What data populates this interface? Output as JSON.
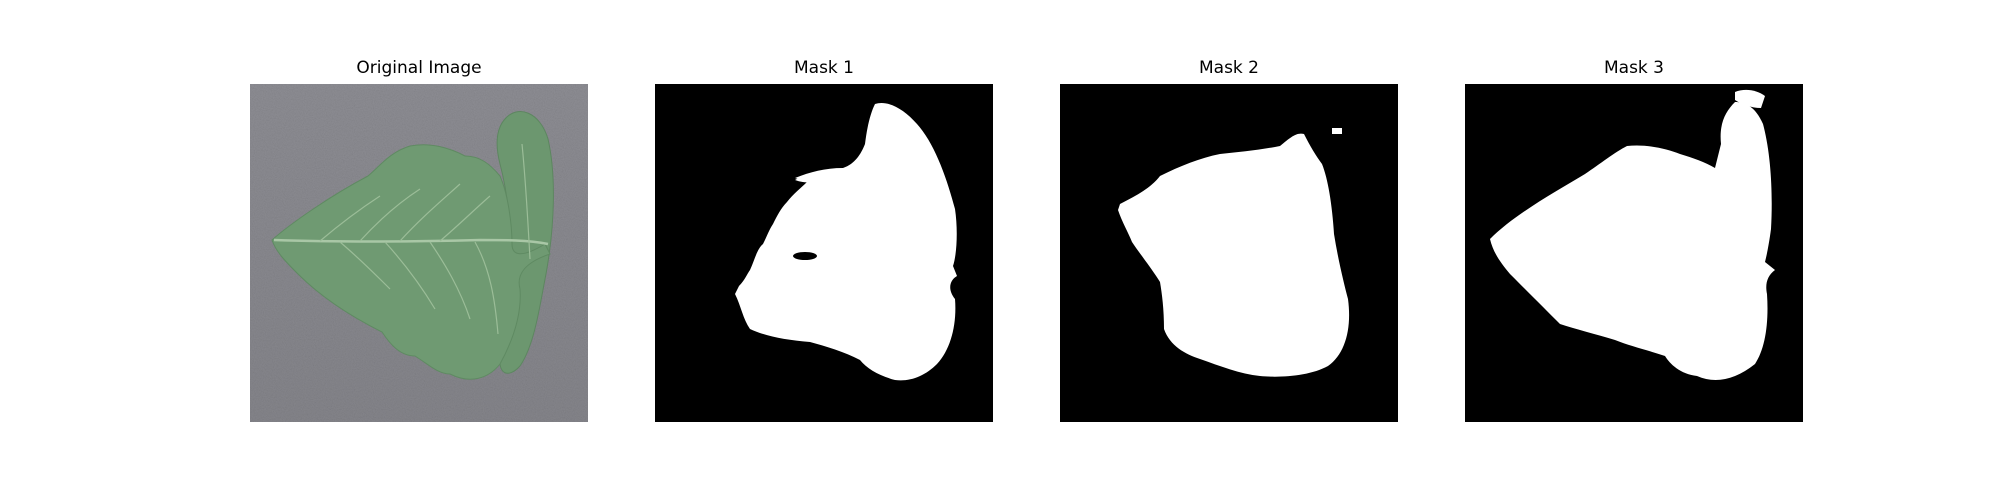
{
  "figure": {
    "panels": [
      {
        "title": "Original Image",
        "kind": "photo"
      },
      {
        "title": "Mask 1",
        "kind": "mask"
      },
      {
        "title": "Mask 2",
        "kind": "mask"
      },
      {
        "title": "Mask 3",
        "kind": "mask"
      }
    ]
  },
  "colors": {
    "background": "#ffffff",
    "photo_background": "#8a8a90",
    "leaf": "#6f9a72",
    "leaf_vein": "#a9c7a6",
    "mask_background": "#000000",
    "mask_foreground": "#ffffff"
  }
}
